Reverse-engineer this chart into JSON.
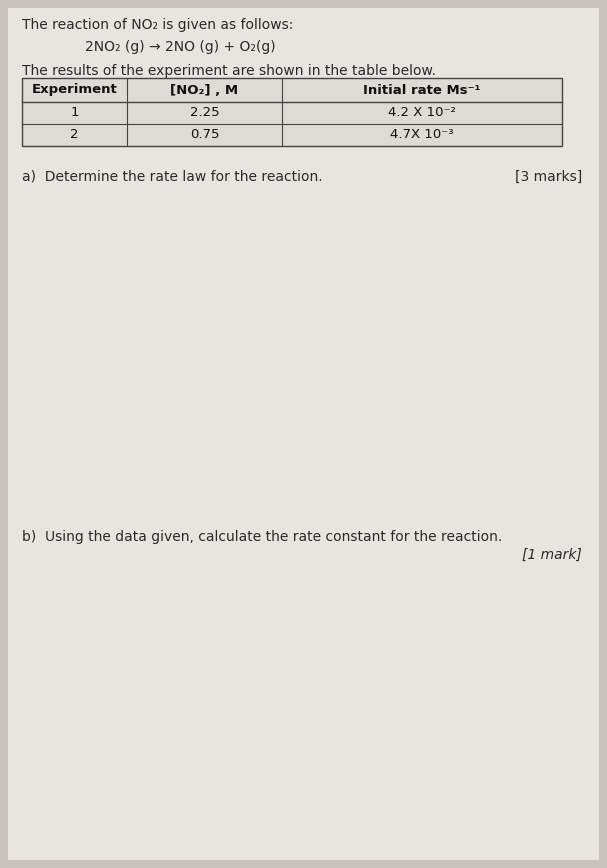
{
  "bg_color": "#c8c4bc",
  "paper_color": "#e8e4e0",
  "title_line1": "The reaction of NO₂ is given as follows:",
  "equation": "2NO₂ (g) → 2NO (g) + O₂(g)",
  "table_intro": "The results of the experiment are shown in the table below.",
  "col_headers": [
    "Experiment",
    "[NO₂] , M",
    "Initial rate Ms⁻¹"
  ],
  "row1": [
    "1",
    "2.25",
    "4.2 X 10⁻²"
  ],
  "row2": [
    "2",
    "0.75",
    "4.7X 10⁻³"
  ],
  "question_a": "a)  Determine the rate law for the reaction.",
  "marks_a": "[3 marks]",
  "question_b": "b)  Using the data given, calculate the rate constant for the reaction.",
  "marks_b": "[1 mark]",
  "font_size_body": 10,
  "font_size_table": 9.5,
  "font_size_marks": 10
}
